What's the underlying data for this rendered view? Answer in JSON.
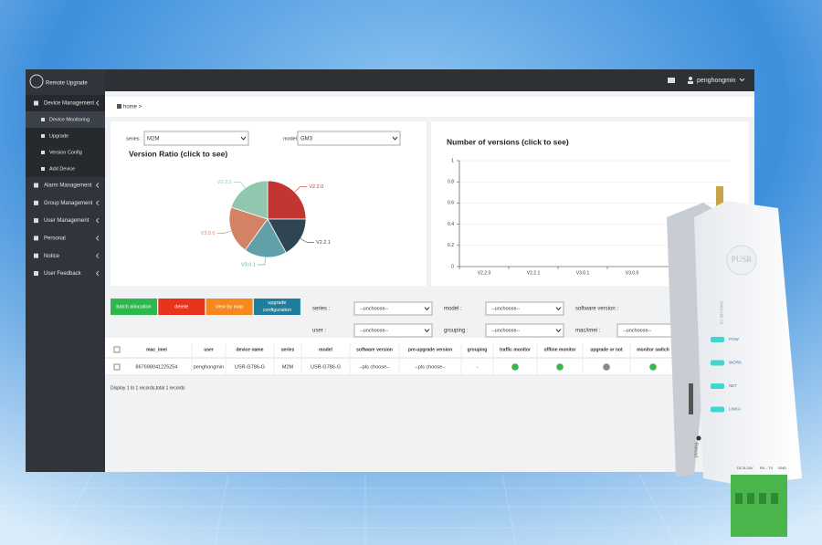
{
  "app": {
    "logo_text": "Remote Upgrade",
    "user": "penghongmin"
  },
  "sidebar": {
    "items": [
      {
        "label": "Device Management",
        "children": [
          "Device Monitoring",
          "Upgrade",
          "Version Config",
          "Add Device"
        ]
      },
      {
        "label": "Alarm Management"
      },
      {
        "label": "Group Management"
      },
      {
        "label": "User Management"
      },
      {
        "label": "Personal"
      },
      {
        "label": "Notice"
      },
      {
        "label": "User Feedback"
      }
    ]
  },
  "breadcrumb": "home >",
  "version_filters": {
    "series_label": "series :",
    "series_value": "M2M",
    "model_label": "model",
    "model_value": "GM3"
  },
  "chart_data": [
    {
      "type": "pie",
      "title": "Version Ratio (click to see)",
      "categories": [
        "V2.2.0",
        "V2.2.1",
        "V3.0.1",
        "V3.0.0",
        "V2.2.2"
      ],
      "values": [
        25,
        17,
        18,
        20,
        20
      ],
      "colors": [
        "#c23531",
        "#2f4554",
        "#61a0a8",
        "#d48265",
        "#91c7ae"
      ]
    },
    {
      "type": "bar",
      "title": "Number of versions (click to see)",
      "categories": [
        "V2.2.0",
        "V2.2.1",
        "V3.0.1",
        "V3.0.0"
      ],
      "ylim": [
        0,
        1
      ],
      "yticks": [
        0,
        0.2,
        0.4,
        0.6,
        0.8,
        1
      ]
    }
  ],
  "toolbar": [
    "batch allocation",
    "delete",
    "view by map",
    "upgrade configuration"
  ],
  "filters": [
    {
      "label": "series :",
      "value": "--unchoose--"
    },
    {
      "label": "model :",
      "value": "--unchoose--"
    },
    {
      "label": "software version :"
    },
    {
      "label": "user :",
      "value": "--unchoose--"
    },
    {
      "label": "grouping :",
      "value": "--unchoose--"
    },
    {
      "label": "mac/imei :",
      "value": "--unchoose--"
    }
  ],
  "table": {
    "columns": [
      "mac_imei",
      "user",
      "device name",
      "series",
      "model",
      "software version",
      "pre-upgrade version",
      "grouping",
      "traffic monitor",
      "offline monitor",
      "upgrade or not",
      "monitor switch"
    ],
    "rows": [
      [
        "867698041225254",
        "penghongmin",
        "USR-G786-G",
        "M2M",
        "USR-G786-G",
        "--pls choose--",
        "--pls choose--",
        "-"
      ]
    ]
  },
  "footer": "Display 1 to 1 records,total 1 records",
  "device": {
    "brand": "PUSR",
    "leds": [
      "POW",
      "WORK",
      "NET",
      "LINKA"
    ],
    "url": "www.usr.cn",
    "button": "Reload",
    "terminals": [
      "DC:5-24V",
      "RX - TX",
      "GND"
    ]
  }
}
